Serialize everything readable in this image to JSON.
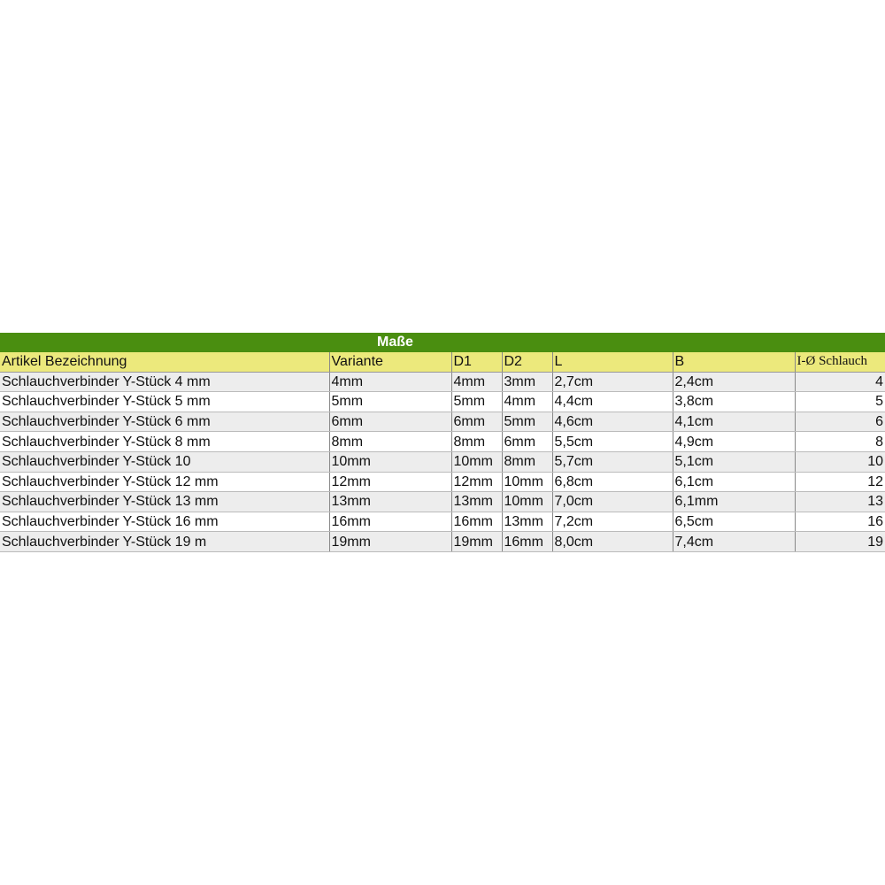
{
  "title": "Maße",
  "colors": {
    "band": "#4a8e10",
    "header": "#ece97c",
    "row_alt": "#ededed"
  },
  "columns": [
    "Artikel Bezeichnung",
    "Variante",
    "D1",
    "D2",
    "L",
    "B",
    "I-Ø Schlauch"
  ],
  "rows": [
    [
      "Schlauchverbinder Y-Stück 4 mm",
      "4mm",
      "4mm",
      "3mm",
      "2,7cm",
      "2,4cm",
      "4"
    ],
    [
      "Schlauchverbinder Y-Stück 5 mm",
      "5mm",
      "5mm",
      "4mm",
      "4,4cm",
      "3,8cm",
      "5"
    ],
    [
      "Schlauchverbinder Y-Stück 6 mm",
      "6mm",
      "6mm",
      "5mm",
      "4,6cm",
      "4,1cm",
      "6"
    ],
    [
      "Schlauchverbinder Y-Stück 8 mm",
      "8mm",
      "8mm",
      "6mm",
      "5,5cm",
      "4,9cm",
      "8"
    ],
    [
      "Schlauchverbinder Y-Stück 10",
      "10mm",
      "10mm",
      "8mm",
      "5,7cm",
      "5,1cm",
      "10"
    ],
    [
      "Schlauchverbinder Y-Stück 12 mm",
      "12mm",
      "12mm",
      "10mm",
      "6,8cm",
      "6,1cm",
      "12"
    ],
    [
      "Schlauchverbinder Y-Stück 13 mm",
      "13mm",
      "13mm",
      "10mm",
      "7,0cm",
      "6,1mm",
      "13"
    ],
    [
      "Schlauchverbinder Y-Stück 16 mm",
      "16mm",
      "16mm",
      "13mm",
      "7,2cm",
      "6,5cm",
      "16"
    ],
    [
      "Schlauchverbinder Y-Stück 19 m",
      "19mm",
      "19mm",
      "16mm",
      "8,0cm",
      "7,4cm",
      "19"
    ]
  ]
}
